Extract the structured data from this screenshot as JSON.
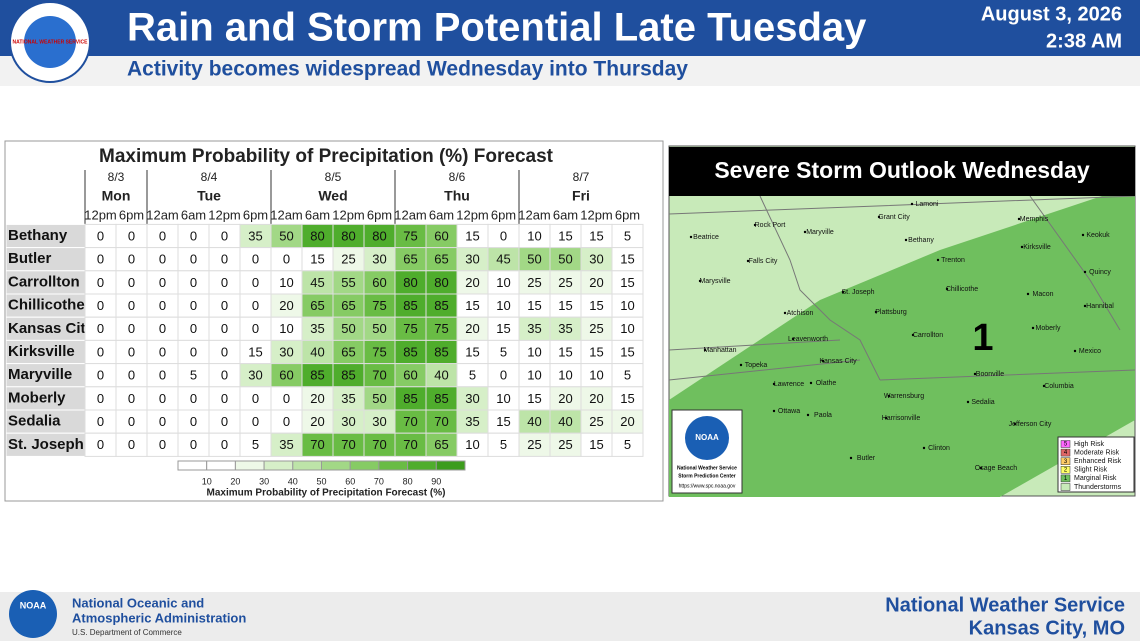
{
  "header": {
    "logo_text": "NATIONAL WEATHER SERVICE",
    "title": "Rain and Storm Potential Late Tuesday",
    "subtitle": "Activity becomes widespread Wednesday into Thursday",
    "date": "August 3, 2026",
    "time": "2:38 AM"
  },
  "table": {
    "title": "Maximum Probability of Precipitation (%) Forecast",
    "days": [
      {
        "date": "8/3",
        "day": "Mon",
        "times": [
          "12pm",
          "6pm"
        ]
      },
      {
        "date": "8/4",
        "day": "Tue",
        "times": [
          "12am",
          "6am",
          "12pm",
          "6pm"
        ]
      },
      {
        "date": "8/5",
        "day": "Wed",
        "times": [
          "12am",
          "6am",
          "12pm",
          "6pm"
        ]
      },
      {
        "date": "8/6",
        "day": "Thu",
        "times": [
          "12am",
          "6am",
          "12pm",
          "6pm"
        ]
      },
      {
        "date": "8/7",
        "day": "Fri",
        "times": [
          "12am",
          "6am",
          "12pm",
          "6pm"
        ]
      }
    ],
    "rows": [
      {
        "name": "Bethany",
        "values": [
          0,
          0,
          0,
          0,
          0,
          35,
          50,
          80,
          80,
          80,
          75,
          60,
          15,
          0,
          10,
          15,
          15,
          5
        ]
      },
      {
        "name": "Butler",
        "values": [
          0,
          0,
          0,
          0,
          0,
          0,
          0,
          15,
          25,
          30,
          65,
          65,
          30,
          45,
          50,
          50,
          30,
          15
        ]
      },
      {
        "name": "Carrollton",
        "values": [
          0,
          0,
          0,
          0,
          0,
          0,
          10,
          45,
          55,
          60,
          80,
          80,
          20,
          10,
          25,
          25,
          20,
          15
        ]
      },
      {
        "name": "Chillicothe",
        "values": [
          0,
          0,
          0,
          0,
          0,
          0,
          20,
          65,
          65,
          75,
          85,
          85,
          15,
          10,
          15,
          15,
          15,
          10
        ]
      },
      {
        "name": "Kansas City",
        "values": [
          0,
          0,
          0,
          0,
          0,
          0,
          10,
          35,
          50,
          50,
          75,
          75,
          20,
          15,
          35,
          35,
          25,
          10
        ]
      },
      {
        "name": "Kirksville",
        "values": [
          0,
          0,
          0,
          0,
          0,
          15,
          30,
          40,
          65,
          75,
          85,
          85,
          15,
          5,
          10,
          15,
          15,
          15
        ]
      },
      {
        "name": "Maryville",
        "values": [
          0,
          0,
          0,
          5,
          0,
          30,
          60,
          85,
          85,
          70,
          60,
          40,
          5,
          0,
          10,
          10,
          10,
          5
        ]
      },
      {
        "name": "Moberly",
        "values": [
          0,
          0,
          0,
          0,
          0,
          0,
          0,
          20,
          35,
          50,
          85,
          85,
          30,
          10,
          15,
          20,
          20,
          15
        ]
      },
      {
        "name": "Sedalia",
        "values": [
          0,
          0,
          0,
          0,
          0,
          0,
          0,
          20,
          30,
          30,
          70,
          70,
          35,
          15,
          40,
          40,
          25,
          20
        ]
      },
      {
        "name": "St. Joseph",
        "values": [
          0,
          0,
          0,
          0,
          0,
          5,
          35,
          70,
          70,
          70,
          70,
          65,
          10,
          5,
          25,
          25,
          15,
          5
        ]
      }
    ],
    "legend": {
      "ticks": [
        10,
        20,
        30,
        40,
        50,
        60,
        70,
        80,
        90
      ],
      "colors": [
        "#ffffff",
        "#ffffff",
        "#eef8e8",
        "#d6efc8",
        "#bde4a8",
        "#a2d886",
        "#86cb64",
        "#69bc44",
        "#4fad2c",
        "#3c9c1c"
      ],
      "label": "Maximum Probability of Precipitation Forecast (%)"
    }
  },
  "map": {
    "title": "Severe Storm Outlook Wednesday",
    "risk_number": "1",
    "cities": [
      "Lamoni",
      "Grant City",
      "Memphis",
      "Keokuk",
      "Rock Port",
      "Maryville",
      "Bethany",
      "Beatrice",
      "Kirksville",
      "Falls City",
      "Trenton",
      "Quincy",
      "Marysville",
      "Chillicothe",
      "Macon",
      "Hannibal",
      "St. Joseph",
      "Plattsburg",
      "Atchison",
      "Moberly",
      "Carrollton",
      "Leavenworth",
      "Manhattan",
      "Kansas City",
      "Mexico",
      "Topeka",
      "Boonville",
      "Lawrence",
      "Olathe",
      "Columbia",
      "Warrensburg",
      "Sedalia",
      "Ottawa",
      "Paola",
      "Harrisonville",
      "Jefferson City",
      "Clinton",
      "Butler",
      "Osage Beach"
    ],
    "badge": {
      "logo": "NOAA",
      "org": "National Weather Service",
      "center": "Storm Prediction Center",
      "url": "https://www.spc.noaa.gov"
    },
    "legend": [
      {
        "number": "5",
        "label": "High Risk",
        "color": "#ff66ff"
      },
      {
        "number": "4",
        "label": "Moderate Risk",
        "color": "#e06666"
      },
      {
        "number": "3",
        "label": "Enhanced Risk",
        "color": "#ffcc66"
      },
      {
        "number": "2",
        "label": "Slight Risk",
        "color": "#ffff66"
      },
      {
        "number": "1",
        "label": "Marginal Risk",
        "color": "#6fbf5e"
      },
      {
        "number": "",
        "label": "Thunderstorms",
        "color": "#c8eab9"
      }
    ]
  },
  "footer": {
    "noaa_logo": "NOAA",
    "noaa_name_1": "National Oceanic and",
    "noaa_name_2": "Atmospheric Administration",
    "department": "U.S. Department of Commerce",
    "office_1": "National Weather Service",
    "office_2": "Kansas City, MO"
  }
}
